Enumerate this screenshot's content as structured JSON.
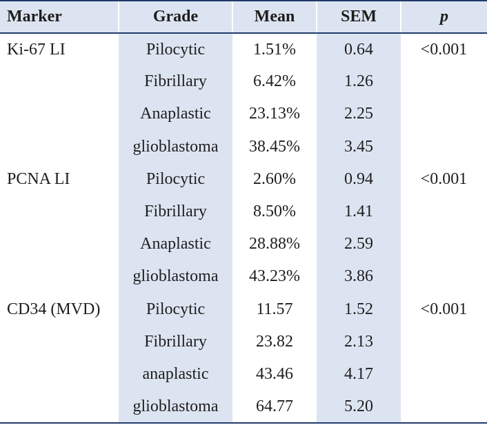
{
  "columns": [
    "Marker",
    "Grade",
    "Mean",
    "SEM",
    "p"
  ],
  "rows": [
    {
      "marker": "Ki-67 LI",
      "grade": "Pilocytic",
      "mean": "1.51%",
      "sem": "0.64",
      "p": "<0.001"
    },
    {
      "marker": "",
      "grade": "Fibrillary",
      "mean": "6.42%",
      "sem": "1.26",
      "p": ""
    },
    {
      "marker": "",
      "grade": "Anaplastic",
      "mean": "23.13%",
      "sem": "2.25",
      "p": ""
    },
    {
      "marker": "",
      "grade": "glioblastoma",
      "mean": "38.45%",
      "sem": "3.45",
      "p": ""
    },
    {
      "marker": "PCNA LI",
      "grade": "Pilocytic",
      "mean": "2.60%",
      "sem": "0.94",
      "p": "<0.001"
    },
    {
      "marker": "",
      "grade": "Fibrillary",
      "mean": "8.50%",
      "sem": "1.41",
      "p": ""
    },
    {
      "marker": "",
      "grade": "Anaplastic",
      "mean": "28.88%",
      "sem": "2.59",
      "p": ""
    },
    {
      "marker": "",
      "grade": "glioblastoma",
      "mean": "43.23%",
      "sem": "3.86",
      "p": ""
    },
    {
      "marker": "CD34 (MVD)",
      "grade": "Pilocytic",
      "mean": "11.57",
      "sem": "1.52",
      "p": "<0.001"
    },
    {
      "marker": "",
      "grade": "Fibrillary",
      "mean": "23.82",
      "sem": "2.13",
      "p": ""
    },
    {
      "marker": "",
      "grade": "anaplastic",
      "mean": "43.46",
      "sem": "4.17",
      "p": ""
    },
    {
      "marker": "",
      "grade": "glioblastoma",
      "mean": "64.77",
      "sem": "5.20",
      "p": ""
    }
  ],
  "colors": {
    "header_bg": "#dde4f1",
    "rule": "#1f3a6b",
    "shade": "#dde4f1",
    "text": "#1e1e1e"
  }
}
